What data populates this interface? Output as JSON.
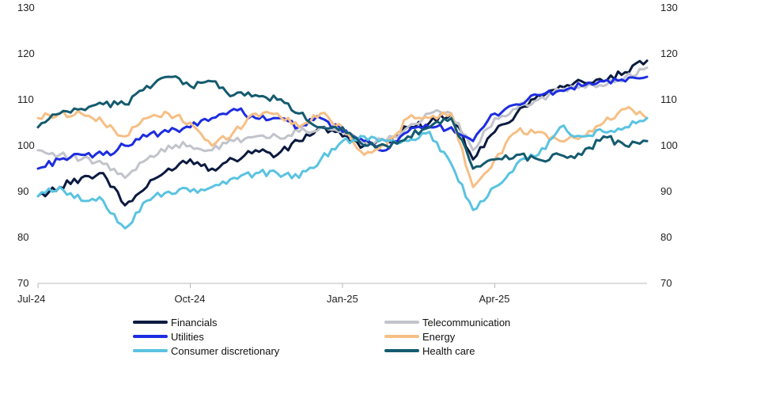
{
  "chart_data": {
    "type": "line",
    "x_ticks": [
      "Jul-24",
      "Oct-24",
      "Jan-25",
      "Apr-25"
    ],
    "y_ticks": [
      70,
      80,
      90,
      100,
      110,
      120,
      130
    ],
    "ylim": [
      70,
      130
    ],
    "x_range_months": [
      0,
      11
    ],
    "grid": false,
    "legend_position": "bottom",
    "series": [
      {
        "name": "Financials",
        "color": "#0b1a3f",
        "points": [
          [
            0,
            89
          ],
          [
            0.5,
            91
          ],
          [
            1,
            93
          ],
          [
            1.5,
            94
          ],
          [
            2,
            87
          ],
          [
            2.5,
            91
          ],
          [
            3,
            95
          ],
          [
            3.5,
            97
          ],
          [
            4,
            95
          ],
          [
            4.5,
            97
          ],
          [
            5,
            99
          ],
          [
            5.5,
            98
          ],
          [
            6,
            101
          ],
          [
            6.5,
            104
          ],
          [
            7,
            102
          ],
          [
            7.5,
            100
          ],
          [
            8,
            101
          ],
          [
            8.5,
            104
          ],
          [
            9,
            105
          ],
          [
            9.5,
            107
          ],
          [
            10,
            97
          ],
          [
            10.5,
            103
          ],
          [
            11,
            107
          ],
          [
            11.5,
            111
          ],
          [
            12,
            113
          ],
          [
            12.5,
            114
          ],
          [
            13,
            114
          ],
          [
            13.5,
            116
          ],
          [
            14,
            118.5
          ]
        ]
      },
      {
        "name": "Telecommunication",
        "color": "#c2c4cb",
        "points": [
          [
            0,
            99
          ],
          [
            0.5,
            98
          ],
          [
            1,
            97
          ],
          [
            1.5,
            96
          ],
          [
            2,
            93
          ],
          [
            2.5,
            97
          ],
          [
            3,
            100
          ],
          [
            3.5,
            100
          ],
          [
            4,
            99
          ],
          [
            4.5,
            101
          ],
          [
            5,
            102
          ],
          [
            5.5,
            102
          ],
          [
            6,
            103
          ],
          [
            6.5,
            104
          ],
          [
            7,
            103
          ],
          [
            7.5,
            101
          ],
          [
            8,
            101
          ],
          [
            8.5,
            104
          ],
          [
            9,
            107
          ],
          [
            9.5,
            107
          ],
          [
            10,
            99
          ],
          [
            10.5,
            106
          ],
          [
            11,
            108
          ],
          [
            11.5,
            110
          ],
          [
            12,
            112
          ],
          [
            12.5,
            113
          ],
          [
            13,
            113
          ],
          [
            13.5,
            115
          ],
          [
            14,
            117
          ]
        ]
      },
      {
        "name": "Utilities",
        "color": "#1d2de0",
        "points": [
          [
            0,
            95
          ],
          [
            0.5,
            97
          ],
          [
            1,
            98
          ],
          [
            1.5,
            98
          ],
          [
            2,
            100
          ],
          [
            2.5,
            102
          ],
          [
            3,
            103
          ],
          [
            3.5,
            104
          ],
          [
            4,
            106
          ],
          [
            4.5,
            108
          ],
          [
            5,
            106
          ],
          [
            5.5,
            106
          ],
          [
            6,
            104
          ],
          [
            6.5,
            106
          ],
          [
            7,
            103
          ],
          [
            7.5,
            101
          ],
          [
            8,
            99
          ],
          [
            8.5,
            103
          ],
          [
            9,
            104
          ],
          [
            9.5,
            104
          ],
          [
            10,
            101
          ],
          [
            10.5,
            107
          ],
          [
            11,
            109
          ],
          [
            11.5,
            111
          ],
          [
            12,
            112
          ],
          [
            12.5,
            113
          ],
          [
            13,
            114
          ],
          [
            13.5,
            114
          ],
          [
            14,
            115
          ]
        ]
      },
      {
        "name": "Energy",
        "color": "#f6bf85",
        "points": [
          [
            0,
            106
          ],
          [
            0.5,
            107
          ],
          [
            1,
            107
          ],
          [
            1.5,
            105
          ],
          [
            2,
            102
          ],
          [
            2.5,
            106
          ],
          [
            3,
            107
          ],
          [
            3.5,
            105
          ],
          [
            4,
            100
          ],
          [
            4.5,
            103
          ],
          [
            5,
            107
          ],
          [
            5.5,
            107
          ],
          [
            6,
            104
          ],
          [
            6.5,
            107
          ],
          [
            7,
            104
          ],
          [
            7.5,
            98
          ],
          [
            8,
            100
          ],
          [
            8.5,
            106
          ],
          [
            9,
            106
          ],
          [
            9.5,
            107
          ],
          [
            10,
            91
          ],
          [
            10.5,
            97
          ],
          [
            11,
            103
          ],
          [
            11.5,
            103
          ],
          [
            12,
            101
          ],
          [
            12.5,
            102
          ],
          [
            13,
            105
          ],
          [
            13.5,
            108
          ],
          [
            14,
            106
          ]
        ]
      },
      {
        "name": "Consumer discretionary",
        "color": "#5ac3e0",
        "points": [
          [
            0,
            89
          ],
          [
            0.5,
            91
          ],
          [
            1,
            88
          ],
          [
            1.5,
            88
          ],
          [
            2,
            82
          ],
          [
            2.5,
            88
          ],
          [
            3,
            90
          ],
          [
            3.5,
            90
          ],
          [
            4,
            91
          ],
          [
            4.5,
            93
          ],
          [
            5,
            94
          ],
          [
            5.5,
            94
          ],
          [
            6,
            93
          ],
          [
            6.5,
            97
          ],
          [
            7,
            101
          ],
          [
            7.5,
            102
          ],
          [
            8,
            101
          ],
          [
            8.5,
            101
          ],
          [
            9,
            103
          ],
          [
            9.5,
            96
          ],
          [
            10,
            86
          ],
          [
            10.5,
            91
          ],
          [
            11,
            96
          ],
          [
            11.5,
            98
          ],
          [
            12,
            104
          ],
          [
            12.5,
            102
          ],
          [
            13,
            103
          ],
          [
            13.5,
            104
          ],
          [
            14,
            106
          ]
        ]
      },
      {
        "name": "Health care",
        "color": "#145b6f",
        "points": [
          [
            0,
            104
          ],
          [
            0.5,
            107
          ],
          [
            1,
            108
          ],
          [
            1.5,
            109
          ],
          [
            2,
            109
          ],
          [
            2.5,
            113
          ],
          [
            3,
            115
          ],
          [
            3.5,
            113
          ],
          [
            4,
            114
          ],
          [
            4.5,
            111
          ],
          [
            5,
            111
          ],
          [
            5.5,
            110
          ],
          [
            6,
            107
          ],
          [
            6.5,
            104
          ],
          [
            7,
            104
          ],
          [
            7.5,
            100
          ],
          [
            8,
            100
          ],
          [
            8.5,
            102
          ],
          [
            9,
            104
          ],
          [
            9.5,
            106
          ],
          [
            10,
            95
          ],
          [
            10.5,
            97
          ],
          [
            11,
            98
          ],
          [
            11.5,
            97
          ],
          [
            12,
            98
          ],
          [
            12.5,
            98
          ],
          [
            13,
            102
          ],
          [
            13.5,
            100
          ],
          [
            14,
            101
          ]
        ]
      }
    ]
  }
}
